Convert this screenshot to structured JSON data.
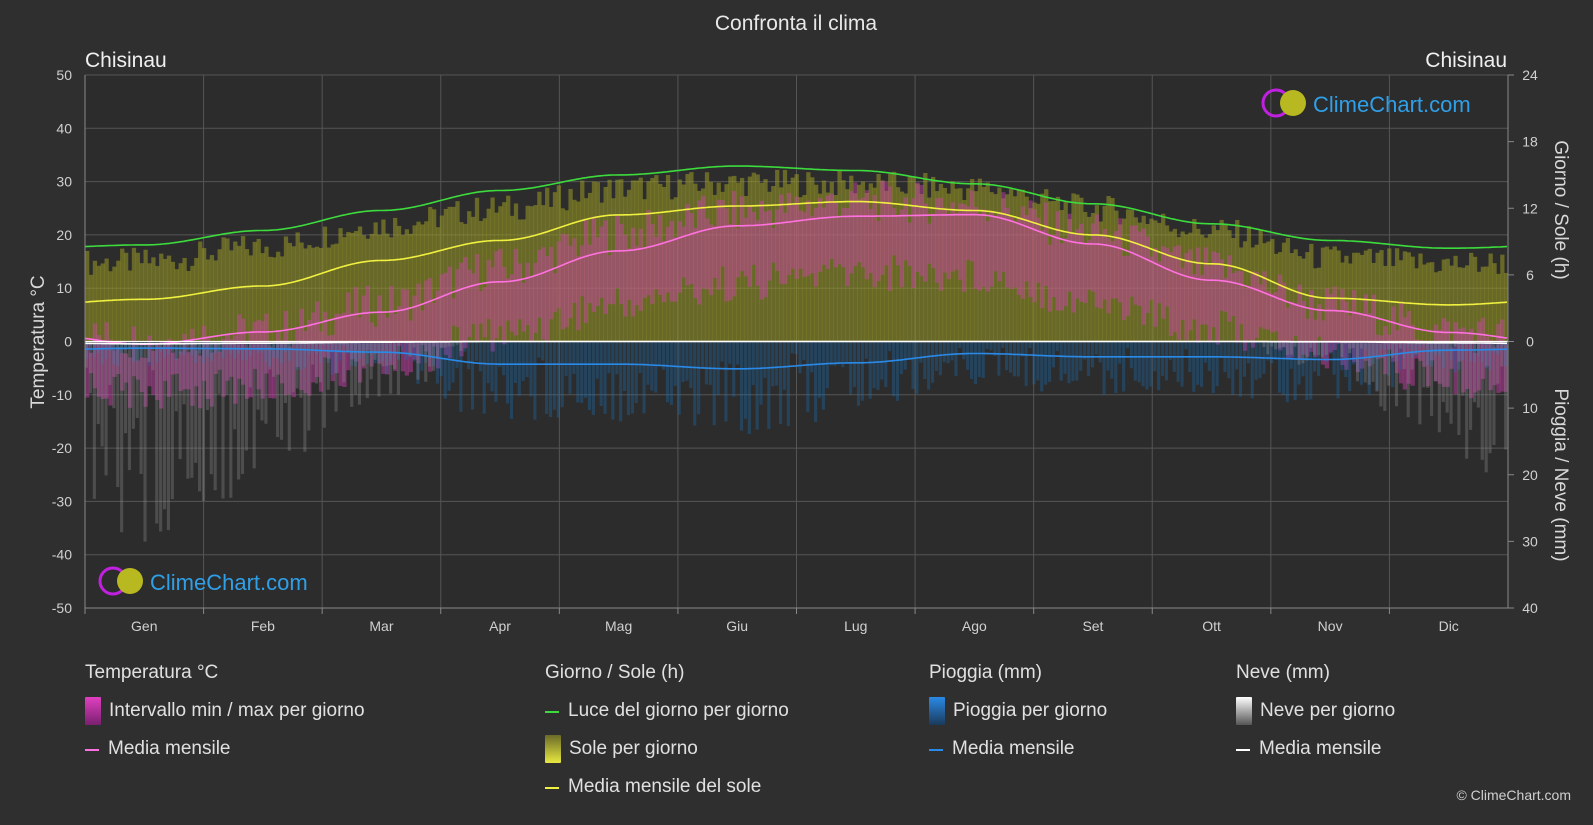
{
  "title": "Confronta il clima",
  "city_left": "Chisinau",
  "city_right": "Chisinau",
  "watermark": "ClimeChart.com",
  "copyright": "© ClimeChart.com",
  "colors": {
    "background": "#2f2f2f",
    "temp_range": "#e040c0",
    "temp_mean": "#ff70e0",
    "daylight": "#3ddc3d",
    "sunshine_fill": "#b4b428",
    "sunshine_mean": "#f0f040",
    "rain": "#1e82d8",
    "rain_mean": "#2a8ae8",
    "snow": "#8c8c8c",
    "snow_mean": "#ffffff"
  },
  "legend": {
    "temperature": {
      "title": "Temperatura °C",
      "items": [
        {
          "label": "Intervallo min / max per giorno",
          "kind": "box",
          "color": "#e040c0"
        },
        {
          "label": "Media mensile",
          "kind": "line",
          "color": "#ff70e0"
        }
      ]
    },
    "sun": {
      "title": "Giorno / Sole (h)",
      "items": [
        {
          "label": "Luce del giorno per giorno",
          "kind": "line",
          "color": "#3ddc3d"
        },
        {
          "label": "Sole per giorno",
          "kind": "box",
          "color": "#d2d232"
        },
        {
          "label": "Media mensile del sole",
          "kind": "line",
          "color": "#f0f040"
        }
      ]
    },
    "rain": {
      "title": "Pioggia (mm)",
      "items": [
        {
          "label": "Pioggia per giorno",
          "kind": "box",
          "color": "#1e82d8"
        },
        {
          "label": "Media mensile",
          "kind": "line",
          "color": "#2a8ae8"
        }
      ]
    },
    "snow": {
      "title": "Neve (mm)",
      "items": [
        {
          "label": "Neve per giorno",
          "kind": "box",
          "color": "#e0e0e0"
        },
        {
          "label": "Media mensile",
          "kind": "line",
          "color": "#ffffff"
        }
      ]
    }
  },
  "chart_data": {
    "type": "area",
    "title": "Confronta il clima",
    "categories": [
      "Gen",
      "Feb",
      "Mar",
      "Apr",
      "Mag",
      "Giu",
      "Lug",
      "Ago",
      "Set",
      "Ott",
      "Nov",
      "Dic"
    ],
    "y_left": {
      "label": "Temperatura °C",
      "min": -50,
      "max": 50,
      "ticks": [
        50,
        40,
        30,
        20,
        10,
        0,
        -10,
        -20,
        -30,
        -40,
        -50
      ]
    },
    "y_right_top": {
      "label": "Giorno / Sole (h)",
      "min": 0,
      "max": 24,
      "ticks": [
        24,
        18,
        12,
        6,
        0
      ]
    },
    "y_right_bottom": {
      "label": "Pioggia / Neve (mm)",
      "min": 0,
      "max": 40,
      "ticks": [
        0,
        10,
        20,
        30,
        40
      ]
    },
    "grid": true,
    "series": [
      {
        "name": "Luce del giorno per giorno",
        "axis": "hours",
        "values": [
          8.7,
          10.0,
          11.8,
          13.6,
          15.0,
          15.8,
          15.4,
          14.2,
          12.4,
          10.6,
          9.1,
          8.4
        ]
      },
      {
        "name": "Sole per giorno",
        "axis": "hours",
        "values": [
          7.2,
          8.5,
          10.5,
          12.0,
          13.8,
          14.3,
          14.2,
          13.8,
          12.0,
          10.0,
          7.5,
          7.0
        ]
      },
      {
        "name": "Media mensile del sole",
        "axis": "hours",
        "values": [
          3.8,
          5.0,
          7.3,
          9.1,
          11.4,
          12.2,
          12.6,
          11.8,
          9.6,
          7.0,
          3.9,
          3.3
        ]
      },
      {
        "name": "Temperatura media massima",
        "axis": "temp",
        "values": [
          -0.5,
          1.0,
          6.0,
          13.0,
          19.5,
          23.5,
          25.5,
          25.0,
          19.5,
          13.0,
          6.0,
          1.0
        ]
      },
      {
        "name": "Temperatura media minima",
        "axis": "temp",
        "values": [
          -6.0,
          -5.0,
          -1.0,
          5.0,
          10.5,
          14.5,
          16.5,
          16.0,
          11.0,
          6.0,
          1.0,
          -3.5
        ]
      },
      {
        "name": "Media mensile temperatura",
        "axis": "temp",
        "values": [
          -0.5,
          1.8,
          5.5,
          11.2,
          17.0,
          21.7,
          23.5,
          23.8,
          18.3,
          11.5,
          5.8,
          1.7
        ]
      },
      {
        "name": "Media mensile pioggia",
        "axis": "mm",
        "values": [
          1.0,
          1.1,
          1.6,
          3.4,
          3.4,
          4.1,
          3.2,
          1.8,
          2.3,
          2.3,
          2.7,
          1.3
        ]
      },
      {
        "name": "Media mensile neve",
        "axis": "mm",
        "values": [
          0.35,
          0.25,
          0.1,
          0.0,
          0.0,
          0.0,
          0.0,
          0.0,
          0.0,
          0.0,
          0.05,
          0.2
        ]
      }
    ]
  }
}
